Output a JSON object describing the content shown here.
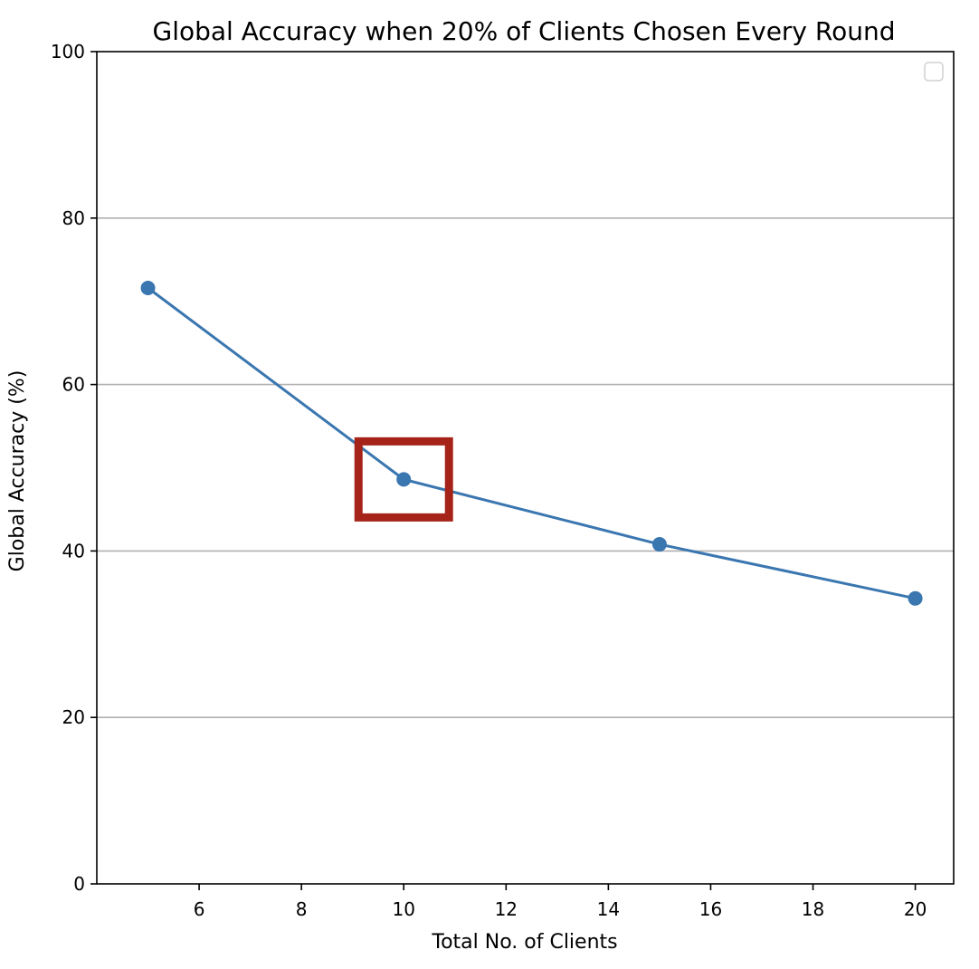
{
  "chart_data": {
    "type": "line",
    "title": "Global Accuracy when 20% of Clients Chosen Every Round",
    "xlabel": "Total No. of Clients",
    "ylabel": "Global Accuracy (%)",
    "x": [
      5,
      10,
      15,
      20
    ],
    "series": [
      {
        "values": [
          71.6,
          48.6,
          40.8,
          34.3
        ]
      }
    ],
    "xlim": [
      4.0,
      20.75
    ],
    "ylim": [
      0,
      100
    ],
    "xticks": [
      6,
      8,
      10,
      12,
      14,
      16,
      18,
      20
    ],
    "yticks": [
      0,
      20,
      40,
      60,
      80,
      100
    ],
    "grid": "y-major",
    "legend": {
      "placement": "top-right",
      "entries": []
    },
    "highlight": {
      "x": 10,
      "y": 48.6,
      "color": "#a52318"
    },
    "colors": {
      "line": "#3a76b0",
      "grid": "#b0b0b0",
      "axes": "#000000"
    }
  }
}
